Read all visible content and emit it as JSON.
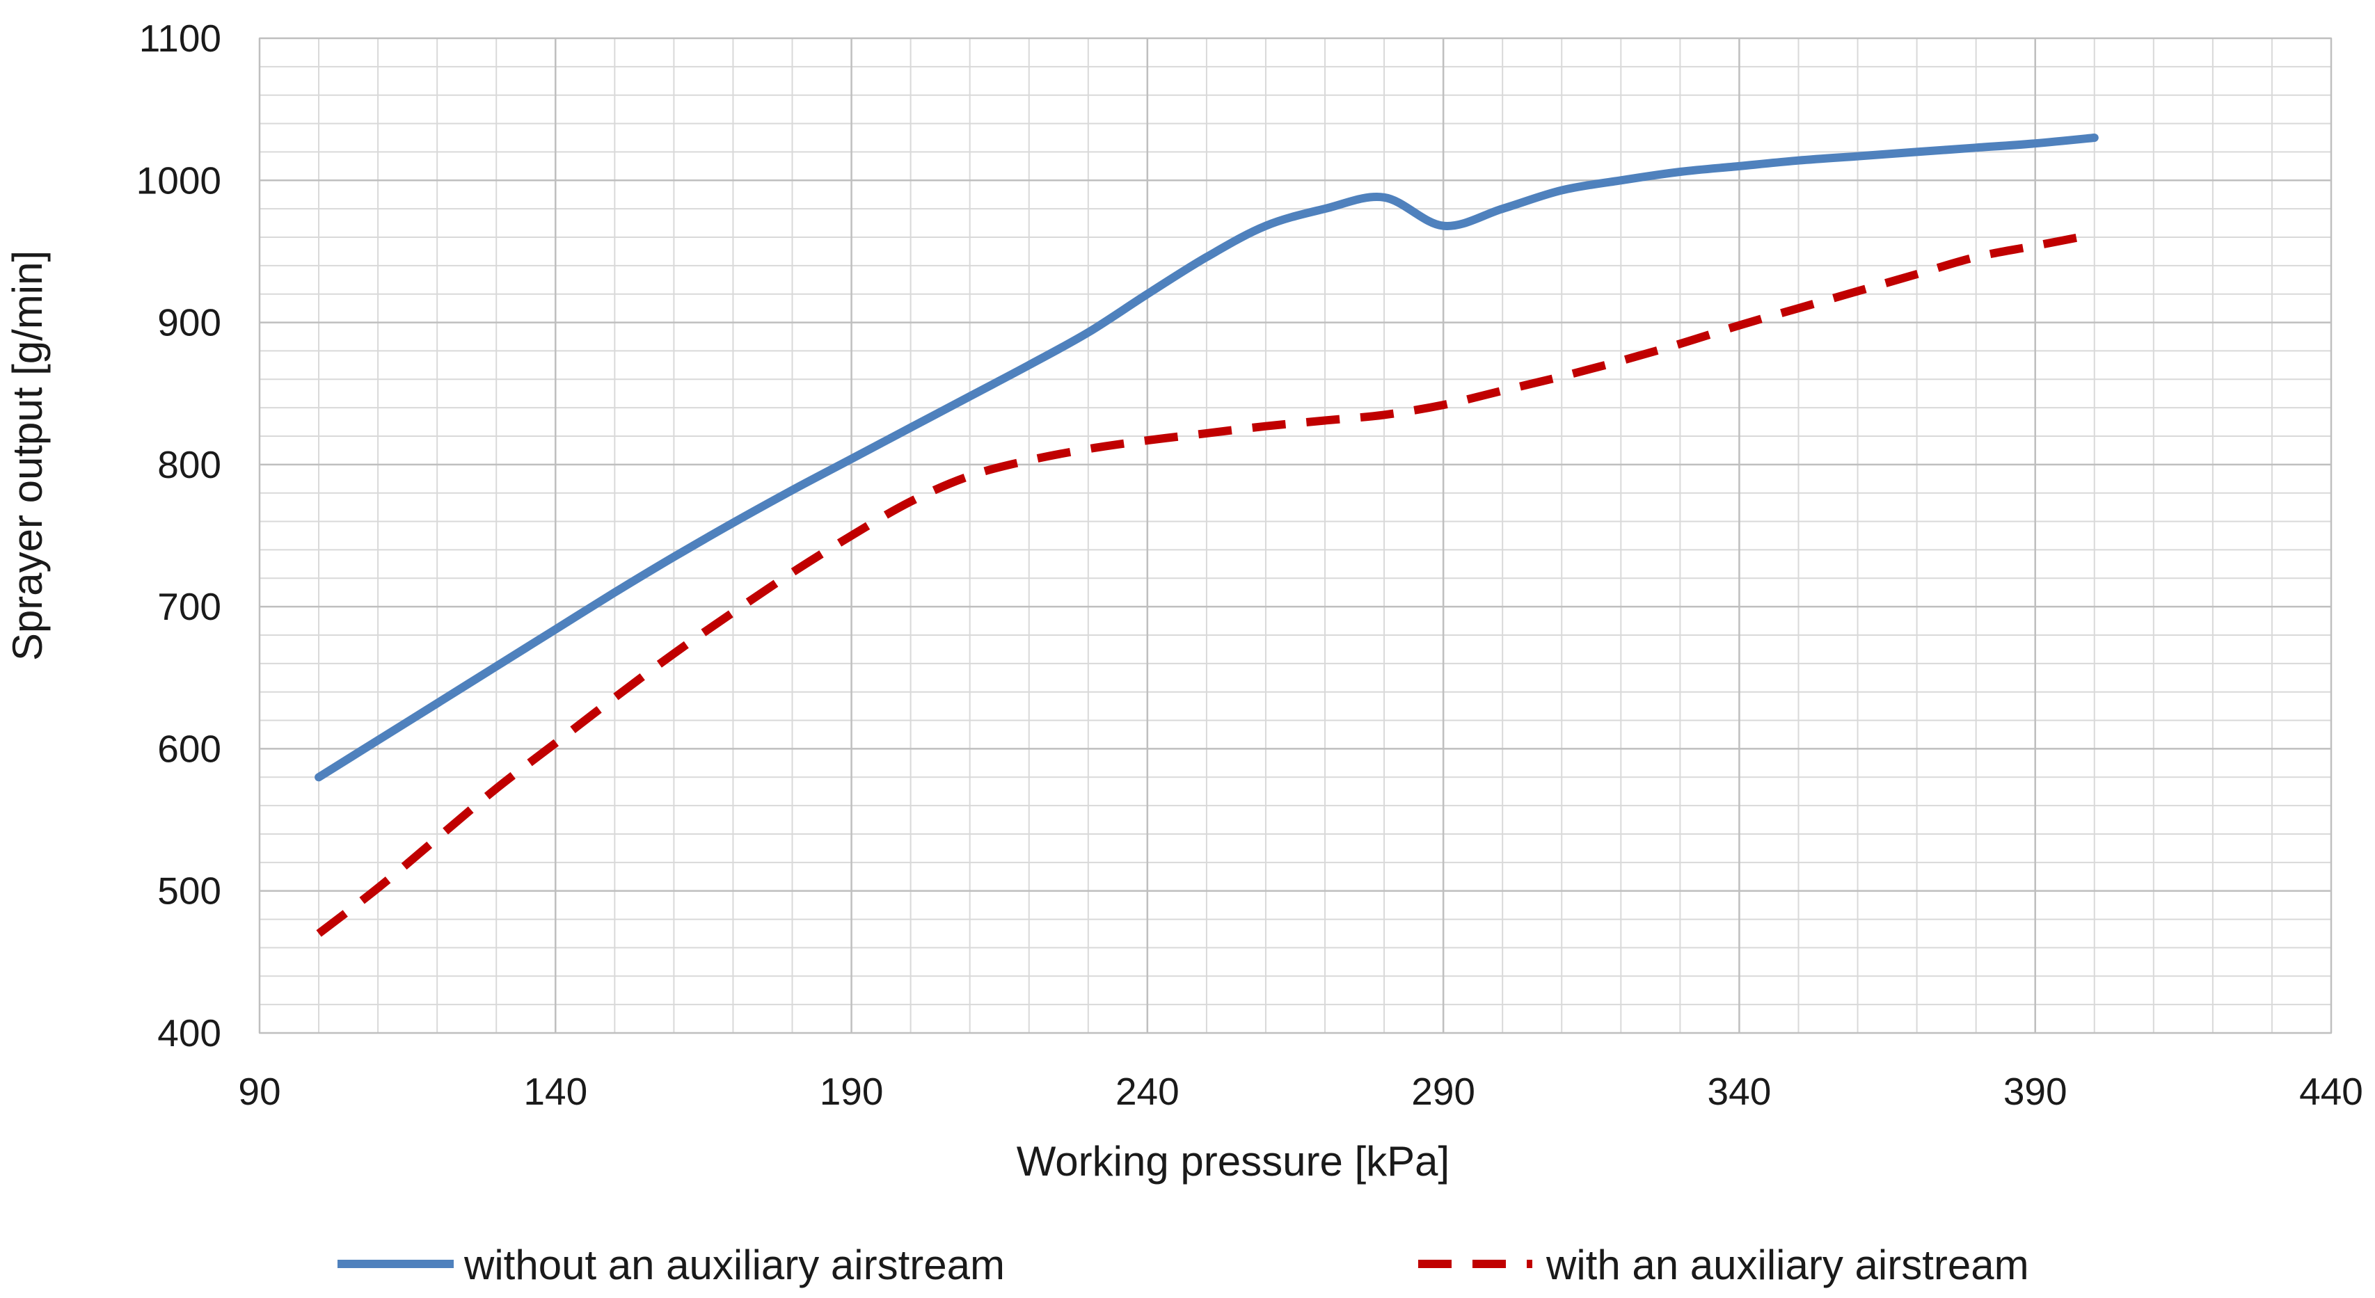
{
  "chart_data": {
    "type": "line",
    "title": "",
    "xlabel": "Working pressure [kPa]",
    "ylabel": "Sprayer output [g/min]",
    "xlim": [
      90,
      440
    ],
    "ylim": [
      400,
      1100
    ],
    "x_ticks": [
      90,
      140,
      190,
      240,
      290,
      340,
      390,
      440
    ],
    "x_tick_labels": [
      "90",
      "140",
      "190",
      "240",
      "290",
      "340",
      "390",
      "440"
    ],
    "y_ticks": [
      400,
      500,
      600,
      700,
      800,
      900,
      1000,
      1100
    ],
    "y_tick_labels": [
      "400",
      "500",
      "600",
      "700",
      "800",
      "900",
      "1000",
      "1100"
    ],
    "x_minor_step": 10,
    "y_minor_step": 20,
    "grid": true,
    "legend_position": "bottom",
    "series": [
      {
        "name": "without an auxiliary airstream",
        "style": "solid",
        "color": "#4f81bd",
        "points": [
          [
            100,
            580
          ],
          [
            110,
            606
          ],
          [
            120,
            632
          ],
          [
            130,
            658
          ],
          [
            140,
            684
          ],
          [
            150,
            710
          ],
          [
            160,
            735
          ],
          [
            170,
            759
          ],
          [
            180,
            782
          ],
          [
            190,
            804
          ],
          [
            200,
            826
          ],
          [
            210,
            848
          ],
          [
            220,
            870
          ],
          [
            230,
            893
          ],
          [
            240,
            920
          ],
          [
            250,
            946
          ],
          [
            260,
            968
          ],
          [
            270,
            980
          ],
          [
            280,
            988
          ],
          [
            290,
            968
          ],
          [
            300,
            980
          ],
          [
            310,
            993
          ],
          [
            320,
            1000
          ],
          [
            330,
            1006
          ],
          [
            340,
            1010
          ],
          [
            350,
            1014
          ],
          [
            360,
            1017
          ],
          [
            370,
            1020
          ],
          [
            380,
            1023
          ],
          [
            390,
            1026
          ],
          [
            400,
            1030
          ]
        ]
      },
      {
        "name": "with an auxiliary airstream",
        "style": "dashed",
        "color": "#c00000",
        "points": [
          [
            100,
            470
          ],
          [
            110,
            502
          ],
          [
            120,
            537
          ],
          [
            130,
            572
          ],
          [
            140,
            604
          ],
          [
            150,
            636
          ],
          [
            160,
            667
          ],
          [
            170,
            696
          ],
          [
            180,
            724
          ],
          [
            190,
            750
          ],
          [
            200,
            774
          ],
          [
            210,
            792
          ],
          [
            220,
            803
          ],
          [
            230,
            811
          ],
          [
            240,
            817
          ],
          [
            250,
            822
          ],
          [
            260,
            827
          ],
          [
            270,
            831
          ],
          [
            280,
            835
          ],
          [
            290,
            842
          ],
          [
            300,
            852
          ],
          [
            310,
            862
          ],
          [
            320,
            873
          ],
          [
            330,
            885
          ],
          [
            340,
            898
          ],
          [
            350,
            910
          ],
          [
            360,
            922
          ],
          [
            370,
            934
          ],
          [
            380,
            946
          ],
          [
            390,
            954
          ],
          [
            400,
            962
          ]
        ]
      }
    ]
  }
}
